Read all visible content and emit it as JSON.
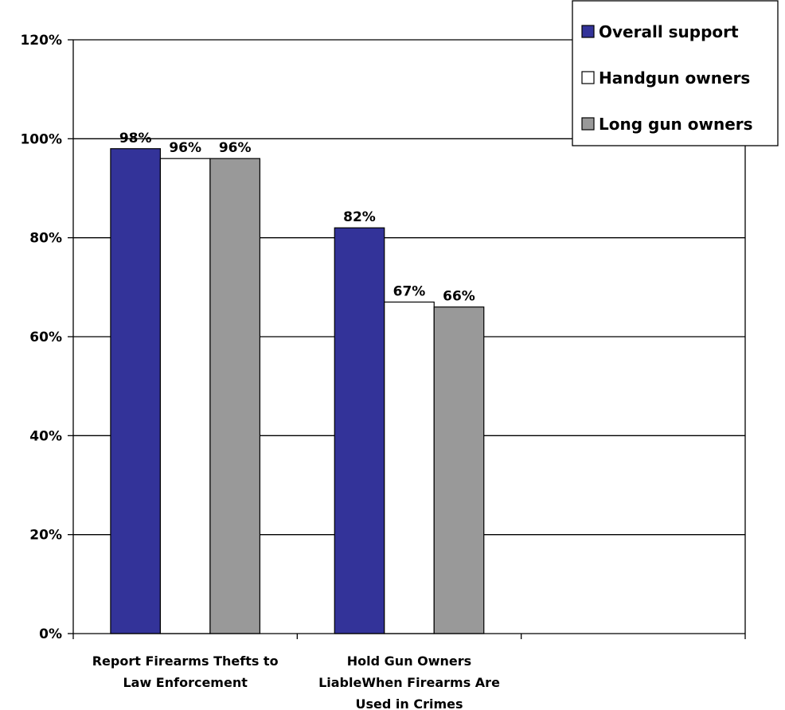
{
  "chart_data": {
    "type": "bar",
    "categories": [
      "Report Firearms Thefts to Law Enforcement",
      "Hold Gun Owners LiableWhen Firearms Are Used in Crimes"
    ],
    "category_lines": [
      [
        "Report Firearms Thefts to",
        "Law Enforcement"
      ],
      [
        "Hold Gun Owners",
        "LiableWhen Firearms Are",
        "Used in Crimes"
      ]
    ],
    "series": [
      {
        "name": "Overall support",
        "values": [
          98,
          82
        ],
        "labels": [
          "98%",
          "82%"
        ],
        "color": "#333399"
      },
      {
        "name": "Handgun owners",
        "values": [
          96,
          67
        ],
        "labels": [
          "96%",
          "67%"
        ],
        "color": "#ffffff"
      },
      {
        "name": "Long gun owners",
        "values": [
          96,
          66
        ],
        "labels": [
          "96%",
          "66%"
        ],
        "color": "#999999"
      }
    ],
    "ylim": [
      0,
      120
    ],
    "yticks": [
      0,
      20,
      40,
      60,
      80,
      100,
      120
    ],
    "ytick_labels": [
      "0%",
      "20%",
      "40%",
      "60%",
      "80%",
      "100%",
      "120%"
    ],
    "category_slots": 3,
    "grid": true,
    "legend_position": "top-right"
  }
}
